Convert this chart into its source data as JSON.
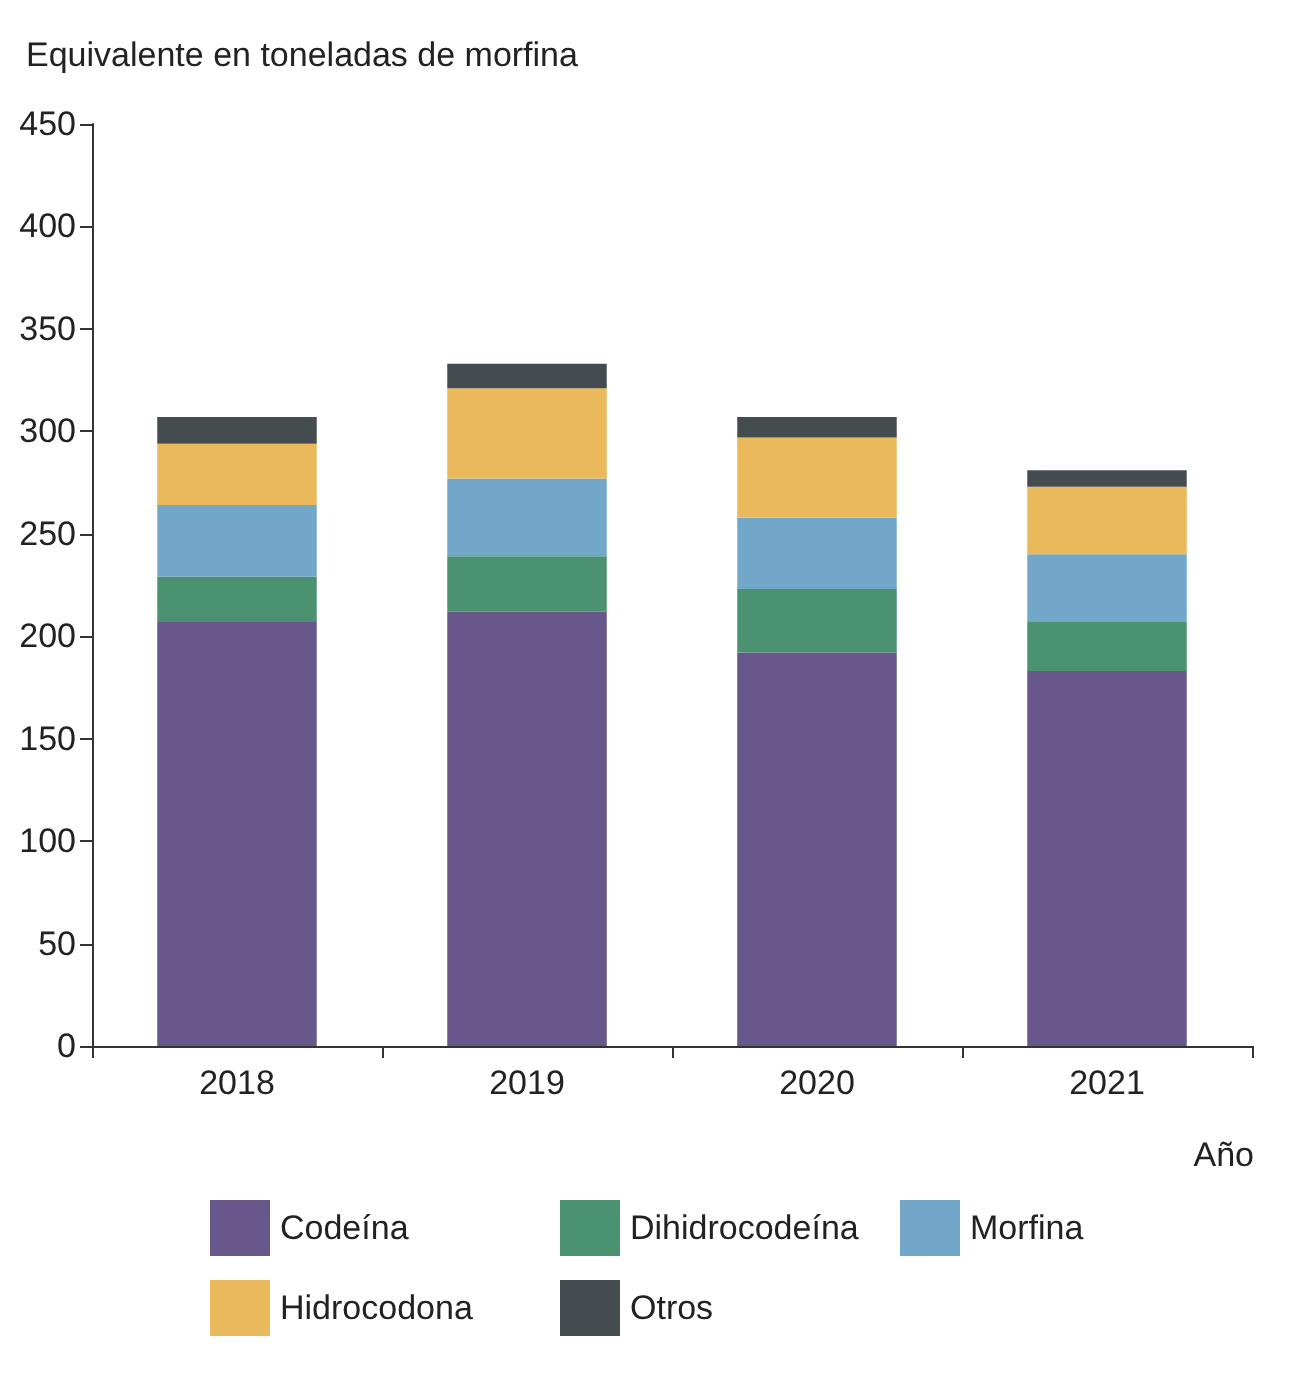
{
  "chart_data": {
    "type": "bar",
    "stacked": true,
    "ylabel": "Equivalente en toneladas de morfina",
    "xlabel": "Año",
    "categories": [
      "2018",
      "2019",
      "2020",
      "2021"
    ],
    "series": [
      {
        "name": "Codeína",
        "color": "#67578a",
        "values": [
          207,
          212,
          192,
          183
        ]
      },
      {
        "name": "Dihidrocodeína",
        "color": "#4a9270",
        "values": [
          22,
          27,
          31,
          24
        ]
      },
      {
        "name": "Morfina",
        "color": "#73a7ca",
        "values": [
          35,
          38,
          35,
          33
        ]
      },
      {
        "name": "Hidrocodona",
        "color": "#e9b95c",
        "values": [
          30,
          44,
          39,
          33
        ]
      },
      {
        "name": "Otros",
        "color": "#454c50",
        "values": [
          13,
          12,
          10,
          8
        ]
      }
    ],
    "ylim": [
      0,
      450
    ],
    "yticks": [
      0,
      50,
      100,
      150,
      200,
      250,
      300,
      350,
      400,
      450
    ],
    "grid": false,
    "legend": "bottom"
  }
}
